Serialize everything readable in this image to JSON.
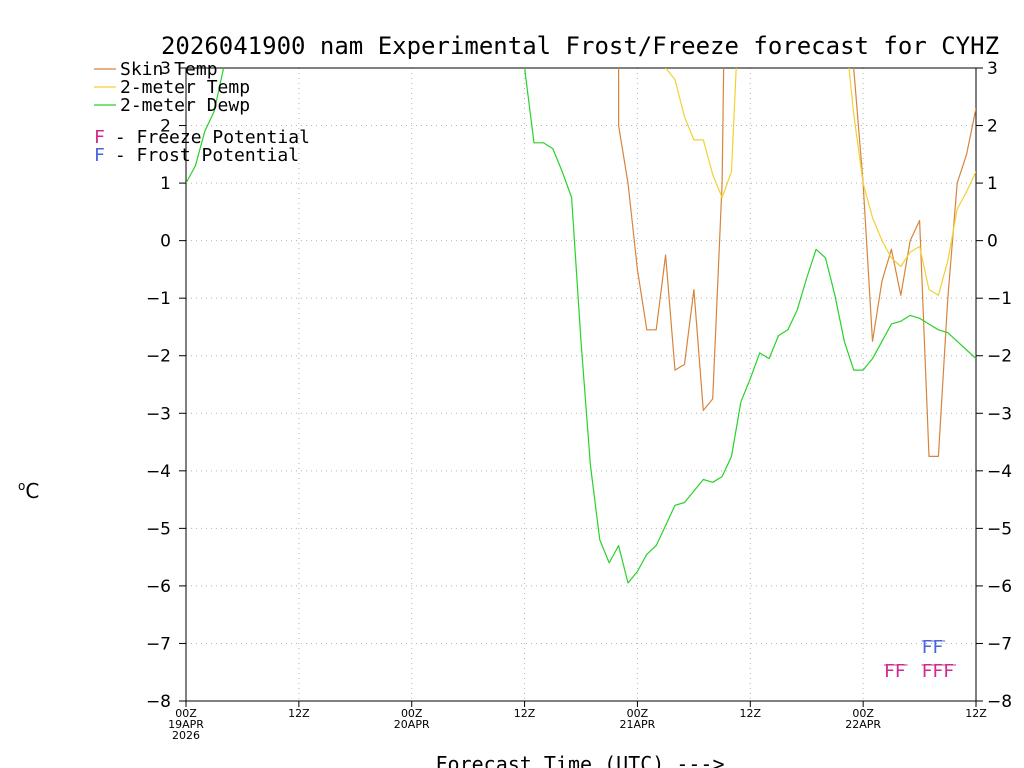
{
  "chart_data": {
    "type": "line",
    "title": "2026041900 nam Experimental Frost/Freeze forecast for CYHZ",
    "ylabel": "°C",
    "ylabel_base": "C",
    "ylabel_super": "o",
    "xlabel": "Forecast Time (UTC) --->",
    "ylim": [
      -8,
      3
    ],
    "xlim": [
      0,
      84
    ],
    "yticks": [
      3,
      2,
      1,
      0,
      -1,
      -2,
      -3,
      -4,
      -5,
      -6,
      -7,
      -8
    ],
    "xticks": [
      {
        "hour": 0,
        "lines": [
          "00Z",
          "19APR",
          "2026"
        ]
      },
      {
        "hour": 12,
        "lines": [
          "12Z"
        ]
      },
      {
        "hour": 24,
        "lines": [
          "00Z",
          "20APR"
        ]
      },
      {
        "hour": 36,
        "lines": [
          "12Z"
        ]
      },
      {
        "hour": 48,
        "lines": [
          "00Z",
          "21APR"
        ]
      },
      {
        "hour": 60,
        "lines": [
          "12Z"
        ]
      },
      {
        "hour": 72,
        "lines": [
          "00Z",
          "22APR"
        ]
      },
      {
        "hour": 84,
        "lines": [
          "12Z"
        ]
      }
    ],
    "grid": true,
    "legend": {
      "position": "top-left",
      "entries": [
        {
          "label": "Skin Temp",
          "color": "#d8843c"
        },
        {
          "label": "2-meter Temp",
          "color": "#f0d232"
        },
        {
          "label": "2-meter Dewp",
          "color": "#28d228"
        }
      ],
      "potentials": [
        {
          "symbol": "F",
          "label": "- Freeze Potential",
          "color": "#d2288c"
        },
        {
          "symbol": "F",
          "label": "- Frost Potential",
          "color": "#4664dc"
        }
      ]
    },
    "series": [
      {
        "name": "Skin Temp",
        "color": "#d8843c",
        "points": [
          [
            46.0,
            7.0
          ],
          [
            46.0,
            2.0
          ],
          [
            47.0,
            1.0
          ],
          [
            48.0,
            -0.5
          ],
          [
            49.0,
            -1.55
          ],
          [
            50.0,
            -1.55
          ],
          [
            51.0,
            -0.25
          ],
          [
            52.0,
            -2.25
          ],
          [
            53.0,
            -2.15
          ],
          [
            54.0,
            -0.85
          ],
          [
            55.0,
            -2.95
          ],
          [
            56.0,
            -2.75
          ],
          [
            57.0,
            1.0
          ],
          [
            57.5,
            7.0
          ],
          [
            null,
            null
          ],
          [
            70.5,
            7.0
          ],
          [
            71.0,
            3.0
          ],
          [
            72.0,
            1.0
          ],
          [
            73.0,
            -1.75
          ],
          [
            74.0,
            -0.7
          ],
          [
            75.0,
            -0.15
          ],
          [
            76.0,
            -0.95
          ],
          [
            77.0,
            0.0
          ],
          [
            78.0,
            0.35
          ],
          [
            79.0,
            -3.75
          ],
          [
            80.0,
            -3.75
          ],
          [
            81.0,
            -1.0
          ],
          [
            82.0,
            1.0
          ],
          [
            83.0,
            1.5
          ],
          [
            84.0,
            2.3
          ]
        ]
      },
      {
        "name": "2-meter Temp",
        "color": "#f0d232",
        "points": [
          [
            0.0,
            3.0
          ],
          [
            1.0,
            3.1
          ],
          [
            2.0,
            3.4
          ],
          [
            3.0,
            3.2
          ],
          [
            null,
            null
          ],
          [
            51.0,
            3.0
          ],
          [
            52.0,
            2.8
          ],
          [
            53.0,
            2.15
          ],
          [
            54.0,
            1.75
          ],
          [
            55.0,
            1.75
          ],
          [
            56.0,
            1.15
          ],
          [
            57.0,
            0.75
          ],
          [
            58.0,
            1.2
          ],
          [
            58.5,
            3.0
          ],
          [
            null,
            null
          ],
          [
            70.5,
            3.0
          ],
          [
            71.0,
            2.2
          ],
          [
            72.0,
            1.0
          ],
          [
            73.0,
            0.4
          ],
          [
            74.0,
            0.0
          ],
          [
            75.0,
            -0.3
          ],
          [
            76.0,
            -0.45
          ],
          [
            77.0,
            -0.2
          ],
          [
            78.0,
            -0.1
          ],
          [
            79.0,
            -0.85
          ],
          [
            80.0,
            -0.95
          ],
          [
            81.0,
            -0.35
          ],
          [
            82.0,
            0.55
          ],
          [
            83.0,
            0.85
          ],
          [
            84.0,
            1.2
          ]
        ]
      },
      {
        "name": "2-meter Dewp",
        "color": "#28d228",
        "points": [
          [
            0.0,
            1.0
          ],
          [
            1.0,
            1.3
          ],
          [
            2.0,
            1.9
          ],
          [
            3.0,
            2.25
          ],
          [
            4.0,
            3.0
          ],
          [
            5.0,
            3.5
          ],
          [
            null,
            null
          ],
          [
            35.0,
            3.5
          ],
          [
            36.0,
            3.0
          ],
          [
            37.0,
            1.7
          ],
          [
            38.0,
            1.7
          ],
          [
            39.0,
            1.6
          ],
          [
            40.0,
            1.2
          ],
          [
            41.0,
            0.75
          ],
          [
            42.0,
            -1.75
          ],
          [
            43.0,
            -3.9
          ],
          [
            44.0,
            -5.2
          ],
          [
            45.0,
            -5.6
          ],
          [
            46.0,
            -5.3
          ],
          [
            47.0,
            -5.95
          ],
          [
            48.0,
            -5.75
          ],
          [
            49.0,
            -5.45
          ],
          [
            50.0,
            -5.3
          ],
          [
            51.0,
            -4.95
          ],
          [
            52.0,
            -4.6
          ],
          [
            53.0,
            -4.55
          ],
          [
            54.0,
            -4.35
          ],
          [
            55.0,
            -4.15
          ],
          [
            56.0,
            -4.2
          ],
          [
            57.0,
            -4.1
          ],
          [
            58.0,
            -3.75
          ],
          [
            59.0,
            -2.8
          ],
          [
            60.0,
            -2.4
          ],
          [
            61.0,
            -1.95
          ],
          [
            62.0,
            -2.05
          ],
          [
            63.0,
            -1.65
          ],
          [
            64.0,
            -1.55
          ],
          [
            65.0,
            -1.2
          ],
          [
            66.0,
            -0.65
          ],
          [
            67.0,
            -0.15
          ],
          [
            68.0,
            -0.3
          ],
          [
            69.0,
            -0.95
          ],
          [
            70.0,
            -1.75
          ],
          [
            71.0,
            -2.25
          ],
          [
            72.0,
            -2.25
          ],
          [
            73.0,
            -2.05
          ],
          [
            74.0,
            -1.75
          ],
          [
            75.0,
            -1.45
          ],
          [
            76.0,
            -1.4
          ],
          [
            77.0,
            -1.3
          ],
          [
            78.0,
            -1.35
          ],
          [
            79.0,
            -1.45
          ],
          [
            80.0,
            -1.55
          ],
          [
            81.0,
            -1.6
          ],
          [
            82.0,
            -1.75
          ],
          [
            83.0,
            -1.9
          ],
          [
            84.0,
            -2.05
          ]
        ]
      }
    ],
    "markers": [
      {
        "type": "freeze",
        "text": "FF",
        "start_hour": 74.0,
        "row": 1,
        "color": "#d2288c"
      },
      {
        "type": "freeze",
        "text": "FFF",
        "start_hour": 78.0,
        "row": 1,
        "color": "#d2288c"
      },
      {
        "type": "frost",
        "text": "FF",
        "start_hour": 78.0,
        "row": 0,
        "color": "#4664dc"
      }
    ]
  }
}
